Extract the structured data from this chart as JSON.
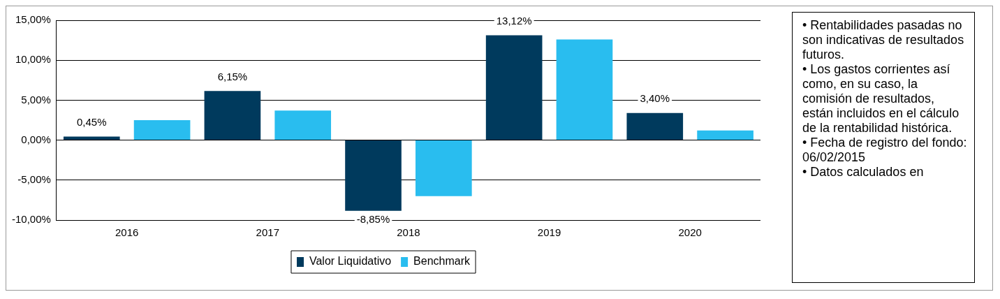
{
  "chart_data": {
    "type": "bar",
    "categories": [
      "2016",
      "2017",
      "2018",
      "2019",
      "2020"
    ],
    "series": [
      {
        "name": "Valor Liquidativo",
        "color": "#003a5d",
        "values": [
          0.45,
          6.15,
          -8.85,
          13.12,
          3.4
        ],
        "value_labels": [
          "0,45%",
          "6,15%",
          "-8,85%",
          "13,12%",
          "3,40%"
        ]
      },
      {
        "name": "Benchmark",
        "color": "#29bdef",
        "values": [
          2.5,
          3.7,
          -7.0,
          12.6,
          1.2
        ]
      }
    ],
    "ylim": [
      -10,
      15
    ],
    "yticks": [
      {
        "value": -10,
        "label": "-10,00%"
      },
      {
        "value": -5,
        "label": "-5,00%"
      },
      {
        "value": 0,
        "label": "0,00%"
      },
      {
        "value": 5,
        "label": "5,00%"
      },
      {
        "value": 10,
        "label": "10,00%"
      },
      {
        "value": 15,
        "label": "15,00%"
      }
    ],
    "grid": "y",
    "legend": "bottom",
    "annotations": [
      "• Rentabilidades pasadas no son indicativas de resultados futuros.",
      "• Los gastos corrientes así como, en su caso, la comisión de resultados, están incluidos en el cálculo de la rentabilidad histórica.",
      "• Fecha de registro del fondo: 06/02/2015",
      "• Datos calculados en"
    ]
  }
}
